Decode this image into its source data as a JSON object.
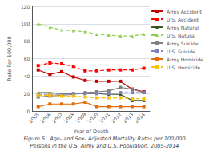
{
  "chart_data": {
    "type": "line",
    "title": "Figure 5.  Age- and Sex- Adjusted Mortality Rates per 100,000",
    "subtitle": "Persons in the U.S. Army and U.S. Population, 2005-2014",
    "x_label": "Year of Death",
    "y_label": "Rate Per 100,000",
    "categories": [
      "2005",
      "2006",
      "2007",
      "2008",
      "2009",
      "2010",
      "2011",
      "2012",
      "2013",
      "2014"
    ],
    "series": [
      {
        "name": "Army Accident",
        "color": "#c00000",
        "marker": "square",
        "line_style": "solid",
        "values": [
          47,
          42,
          45,
          39,
          35,
          34,
          34,
          34,
          25,
          22
        ]
      },
      {
        "name": "U.S. Accident",
        "color": "#ff0000",
        "marker": "square",
        "line_style": "dashed",
        "values": [
          52,
          55,
          54,
          51,
          46,
          46,
          47,
          47,
          47,
          49
        ]
      },
      {
        "name": "Army Natural",
        "color": "#375623",
        "marker": "triangle",
        "line_style": "solid",
        "values": [
          21,
          21,
          20,
          20,
          20,
          20,
          19,
          19,
          12,
          12
        ]
      },
      {
        "name": "U.S. Natural",
        "color": "#92d050",
        "marker": "triangle",
        "line_style": "dashed",
        "values": [
          100,
          96,
          93,
          92,
          91,
          88,
          87,
          86,
          86,
          88
        ]
      },
      {
        "name": "Army Suicide",
        "color": "#7f7f7f",
        "marker": "square",
        "line_style": "solid",
        "values": [
          16,
          17,
          18,
          19,
          21,
          22,
          23,
          27,
          25,
          21
        ]
      },
      {
        "name": "U.S. Suicide",
        "color": "#7f7fbe",
        "marker": "square",
        "line_style": "dashed",
        "values": [
          19,
          19,
          19,
          20,
          20,
          20,
          20,
          21,
          21,
          21
        ]
      },
      {
        "name": "Army Homicide",
        "color": "#e36c0a",
        "marker": "square",
        "line_style": "solid",
        "values": [
          5,
          8,
          8,
          8,
          10,
          5,
          5,
          5,
          5,
          5
        ]
      },
      {
        "name": "U.S. Homicide",
        "color": "#ffc000",
        "marker": "square",
        "line_style": "dashed",
        "values": [
          18,
          18,
          17,
          17,
          16,
          15,
          15,
          15,
          14,
          14
        ]
      }
    ],
    "ylim": [
      0,
      120
    ],
    "yticks": [
      0,
      20,
      40,
      60,
      80,
      100,
      120
    ],
    "grid": true,
    "legend": "right"
  }
}
